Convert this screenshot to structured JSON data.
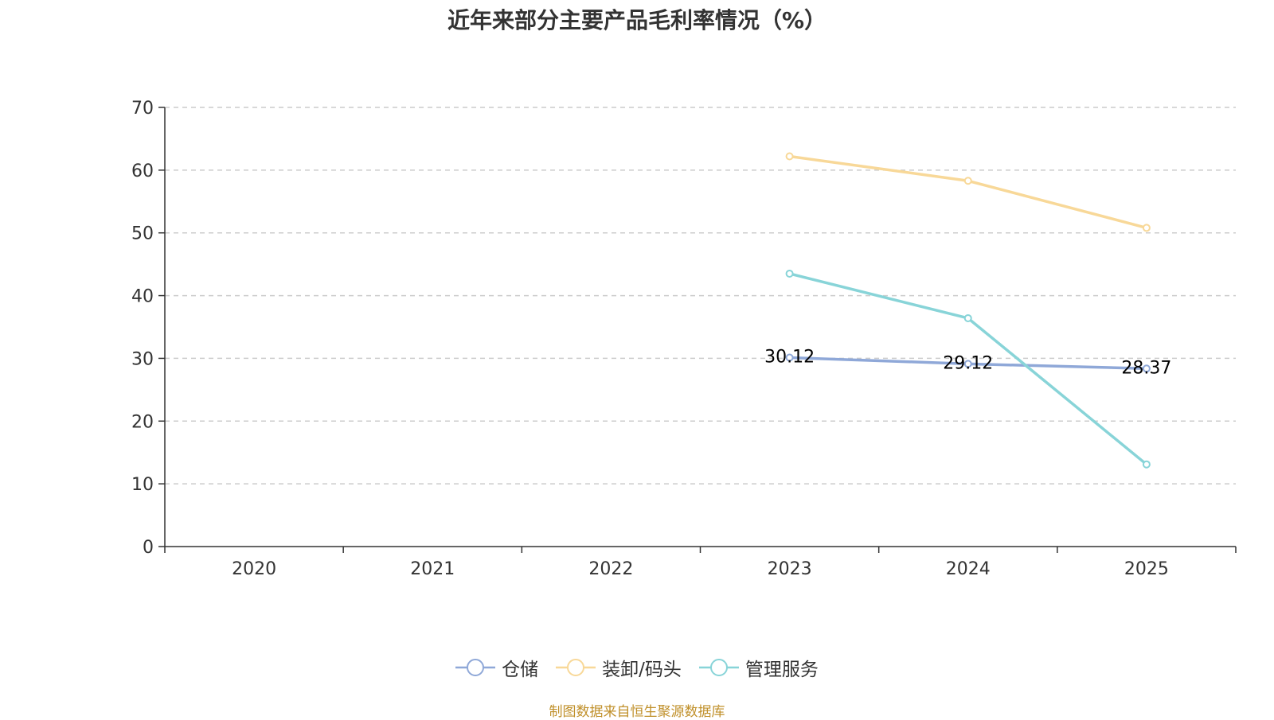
{
  "chart_data": {
    "type": "line",
    "title": "近年来部分主要产品毛利率情况（%）",
    "categories": [
      "2020",
      "2021",
      "2022",
      "2023",
      "2024",
      "2025"
    ],
    "ylim": [
      0,
      70
    ],
    "yticks": [
      0,
      10,
      20,
      30,
      40,
      50,
      60,
      70
    ],
    "grid": true,
    "legend_position": "bottom-center",
    "series": [
      {
        "name": "仓储",
        "color": "#8fa8d8",
        "values": [
          null,
          null,
          null,
          30.12,
          29.12,
          28.37
        ],
        "show_labels": true
      },
      {
        "name": "装卸/码头",
        "color": "#f8d898",
        "values": [
          null,
          null,
          null,
          62.2,
          58.3,
          50.8
        ],
        "show_labels": false
      },
      {
        "name": "管理服务",
        "color": "#88d4d8",
        "values": [
          null,
          null,
          null,
          43.5,
          36.4,
          13.1
        ],
        "show_labels": false
      }
    ]
  },
  "source": "制图数据来自恒生聚源数据库"
}
